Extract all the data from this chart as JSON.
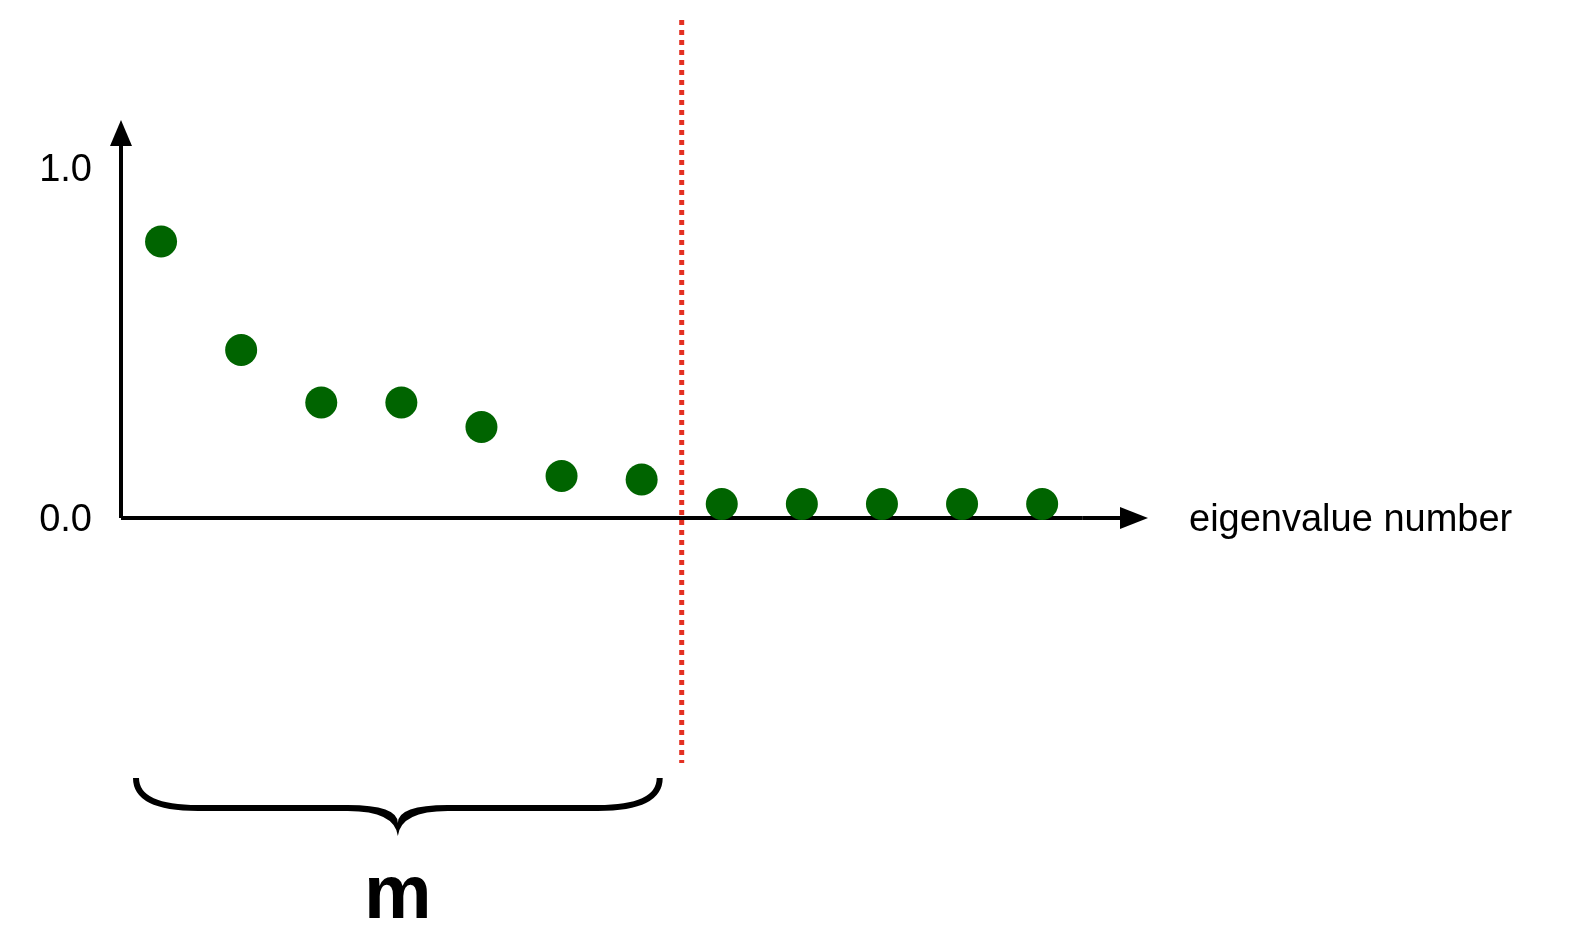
{
  "chart_data": {
    "type": "scatter",
    "xlabel": "eigenvalue number",
    "categories": [
      null,
      null,
      null,
      null,
      null,
      null,
      null,
      null,
      null,
      null,
      null,
      null
    ],
    "series": [
      {
        "color": "#006400",
        "values": [
          0.79,
          0.48,
          0.33,
          0.33,
          0.26,
          0.12,
          0.11,
          0.04,
          0.04,
          0.04,
          0.04,
          0.04
        ]
      }
    ],
    "ylim": [
      0,
      1
    ],
    "yticks": [
      {
        "value": 0,
        "label": "0.0"
      },
      {
        "value": 1,
        "label": "1.0"
      }
    ],
    "marker": "circle",
    "annotations": [
      "m"
    ]
  }
}
